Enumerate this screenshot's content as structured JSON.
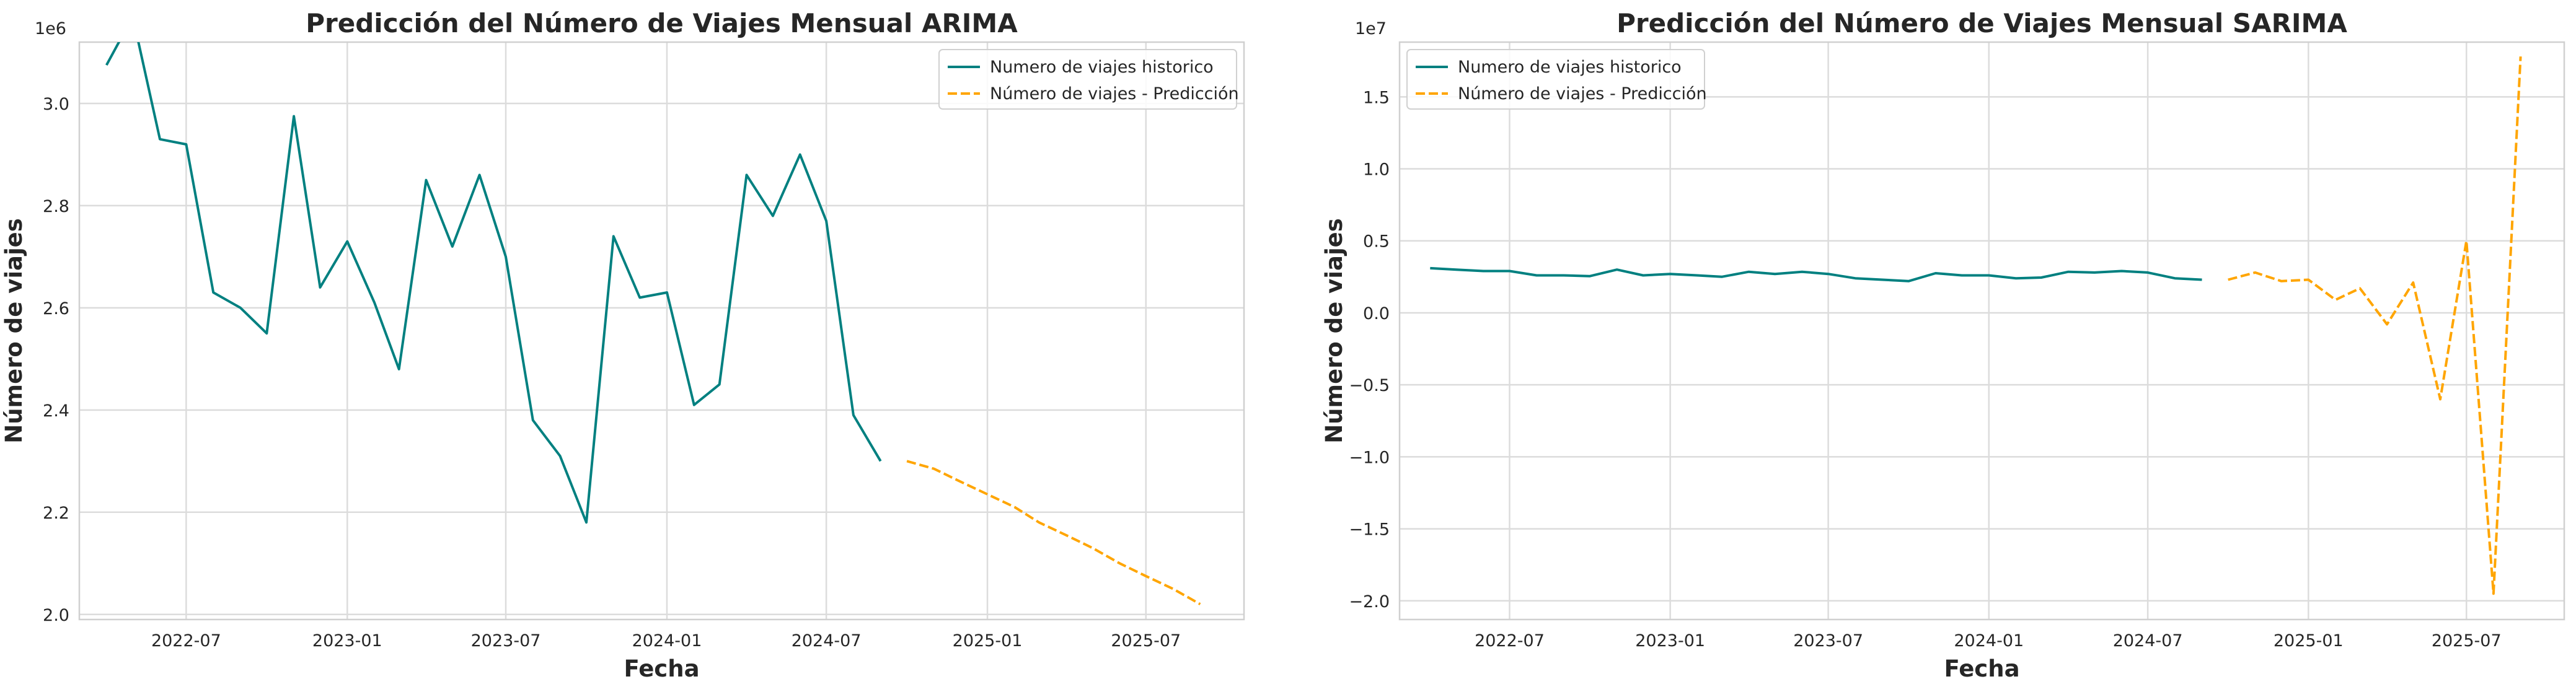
{
  "chart_data": [
    {
      "type": "line",
      "title": "Predicción del Número de Viajes Mensual ARIMA",
      "xlabel": "Fecha",
      "ylabel": "Número de viajes",
      "y_offset_label": "1e6",
      "ylim": [
        1.99,
        3.12
      ],
      "xlim": [
        "2022-03-01",
        "2025-10-21"
      ],
      "x_ticks": [
        "2022-07",
        "2023-01",
        "2023-07",
        "2024-01",
        "2024-07",
        "2025-01",
        "2025-07"
      ],
      "y_ticks": [
        2.0,
        2.2,
        2.4,
        2.6,
        2.8,
        3.0
      ],
      "y_tick_labels": [
        "2.0",
        "2.2",
        "2.4",
        "2.6",
        "2.8",
        "3.0"
      ],
      "grid": true,
      "legend_position": "top-right",
      "series": [
        {
          "name": "Numero de viajes historico",
          "color": "#008080",
          "style": "solid",
          "x": [
            "2022-04-01",
            "2022-05-01",
            "2022-06-01",
            "2022-07-01",
            "2022-08-01",
            "2022-09-01",
            "2022-10-01",
            "2022-11-01",
            "2022-12-01",
            "2023-01-01",
            "2023-02-01",
            "2023-03-01",
            "2023-04-01",
            "2023-05-01",
            "2023-06-01",
            "2023-07-01",
            "2023-08-01",
            "2023-09-01",
            "2023-10-01",
            "2023-11-01",
            "2023-12-01",
            "2024-01-01",
            "2024-02-01",
            "2024-03-01",
            "2024-04-01",
            "2024-05-01",
            "2024-06-01",
            "2024-07-01",
            "2024-08-01",
            "2024-09-01"
          ],
          "y": [
            3.075,
            3.17,
            2.93,
            2.92,
            2.63,
            2.6,
            2.55,
            2.975,
            2.64,
            2.73,
            2.61,
            2.48,
            2.85,
            2.72,
            2.86,
            2.7,
            2.38,
            2.31,
            2.18,
            2.74,
            2.62,
            2.63,
            2.41,
            2.45,
            2.86,
            2.78,
            2.9,
            2.77,
            2.39,
            2.3
          ]
        },
        {
          "name": "Número de viajes - Predicción",
          "color": "#ffa500",
          "style": "dashed",
          "x": [
            "2024-10-01",
            "2024-11-01",
            "2024-12-01",
            "2025-01-01",
            "2025-02-01",
            "2025-03-01",
            "2025-04-01",
            "2025-05-01",
            "2025-06-01",
            "2025-07-01",
            "2025-08-01",
            "2025-09-01"
          ],
          "y": [
            2.3,
            2.285,
            2.26,
            2.235,
            2.21,
            2.18,
            2.155,
            2.13,
            2.1,
            2.075,
            2.05,
            2.02
          ]
        }
      ]
    },
    {
      "type": "line",
      "title": "Predicción del Número de Viajes Mensual SARIMA",
      "xlabel": "Fecha",
      "ylabel": "Número de viajes",
      "y_offset_label": "1e7",
      "ylim": [
        -2.13,
        1.88
      ],
      "xlim": [
        "2022-02-25",
        "2025-10-21"
      ],
      "x_ticks": [
        "2022-07",
        "2023-01",
        "2023-07",
        "2024-01",
        "2024-07",
        "2025-01",
        "2025-07"
      ],
      "y_ticks": [
        -2.0,
        -1.5,
        -1.0,
        -0.5,
        0.0,
        0.5,
        1.0,
        1.5
      ],
      "y_tick_labels": [
        "−2.0",
        "−1.5",
        "−1.0",
        "−0.5",
        "0.0",
        "0.5",
        "1.0",
        "1.5"
      ],
      "grid": true,
      "legend_position": "top-left",
      "series": [
        {
          "name": "Numero de viajes historico",
          "color": "#008080",
          "style": "solid",
          "x": [
            "2022-04-01",
            "2022-05-01",
            "2022-06-01",
            "2022-07-01",
            "2022-08-01",
            "2022-09-01",
            "2022-10-01",
            "2022-11-01",
            "2022-12-01",
            "2023-01-01",
            "2023-02-01",
            "2023-03-01",
            "2023-04-01",
            "2023-05-01",
            "2023-06-01",
            "2023-07-01",
            "2023-08-01",
            "2023-09-01",
            "2023-10-01",
            "2023-11-01",
            "2023-12-01",
            "2024-01-01",
            "2024-02-01",
            "2024-03-01",
            "2024-04-01",
            "2024-05-01",
            "2024-06-01",
            "2024-07-01",
            "2024-08-01",
            "2024-09-01"
          ],
          "y": [
            0.31,
            0.3,
            0.29,
            0.29,
            0.26,
            0.26,
            0.255,
            0.3,
            0.26,
            0.27,
            0.26,
            0.25,
            0.285,
            0.27,
            0.285,
            0.27,
            0.24,
            0.23,
            0.22,
            0.275,
            0.26,
            0.26,
            0.24,
            0.245,
            0.285,
            0.28,
            0.29,
            0.28,
            0.24,
            0.23
          ]
        },
        {
          "name": "Número de viajes - Predicción",
          "color": "#ffa500",
          "style": "dashed",
          "x": [
            "2024-10-01",
            "2024-11-01",
            "2024-12-01",
            "2025-01-01",
            "2025-02-01",
            "2025-03-01",
            "2025-04-01",
            "2025-05-01",
            "2025-06-01",
            "2025-07-01",
            "2025-08-01",
            "2025-09-01"
          ],
          "y": [
            0.23,
            0.28,
            0.22,
            0.23,
            0.09,
            0.17,
            -0.08,
            0.21,
            -0.6,
            0.5,
            -1.95,
            1.78
          ]
        }
      ]
    }
  ]
}
